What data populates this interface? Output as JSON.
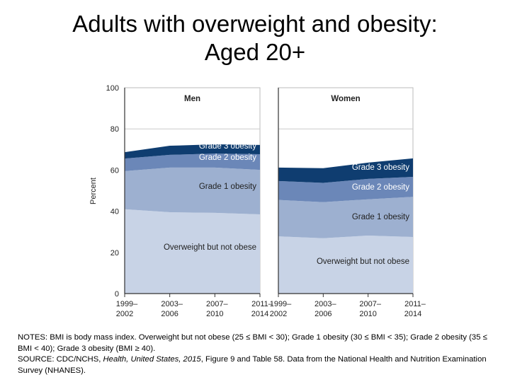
{
  "title_line1": "Adults with overweight and obesity:",
  "title_line2": "Aged 20+",
  "chart_data": {
    "type": "area",
    "stacked": true,
    "ylabel": "Percent",
    "ylim": [
      0,
      100
    ],
    "yticks": [
      "0",
      "20",
      "40",
      "60",
      "80",
      "100"
    ],
    "grid": "horizontal line at 80",
    "categories": [
      [
        "1999–",
        "2002"
      ],
      [
        "2003–",
        "2006"
      ],
      [
        "2007–",
        "2010"
      ],
      [
        "2011–",
        "2014"
      ]
    ],
    "colors": {
      "overweight": "#c8d3e6",
      "grade1": "#9db0d0",
      "grade2": "#6b87b8",
      "grade3": "#0f3d70"
    },
    "panels": [
      {
        "title": "Men",
        "series": [
          {
            "name": "Overweight but not obese",
            "key": "overweight",
            "values": [
              41.0,
              39.5,
              39.2,
              38.5
            ]
          },
          {
            "name": "Grade 1 obesity",
            "key": "grade1",
            "values": [
              18.5,
              21.7,
              22.0,
              21.6
            ]
          },
          {
            "name": "Grade 2 obesity",
            "key": "grade2",
            "values": [
              6.1,
              6.2,
              6.8,
              7.6
            ]
          },
          {
            "name": "Grade 3 obesity",
            "key": "grade3",
            "values": [
              3.1,
              4.4,
              4.5,
              4.5
            ]
          }
        ]
      },
      {
        "title": "Women",
        "series": [
          {
            "name": "Overweight but not obese",
            "key": "overweight",
            "values": [
              27.8,
              26.9,
              28.2,
              27.5
            ]
          },
          {
            "name": "Grade 1 obesity",
            "key": "grade1",
            "values": [
              17.7,
              17.5,
              17.6,
              19.5
            ]
          },
          {
            "name": "Grade 2 obesity",
            "key": "grade2",
            "values": [
              9.2,
              9.4,
              9.9,
              9.7
            ]
          },
          {
            "name": "Grade 3 obesity",
            "key": "grade3",
            "values": [
              6.5,
              7.1,
              7.9,
              9.0
            ]
          }
        ]
      }
    ]
  },
  "notes": {
    "notes_text": "NOTES: BMI is body mass index. Overweight but not obese (25 ≤ BMI < 30); Grade 1 obesity (30 ≤ BMI < 35); Grade 2 obesity (35 ≤ BMI < 40); Grade 3 obesity (BMI ≥ 40).",
    "source_prefix": "SOURCE: CDC/NCHS, ",
    "source_italic": "Health, United States, 2015",
    "source_suffix": ", Figure 9 and Table 58. Data from the National Health and Nutrition Examination Survey (NHANES)."
  }
}
